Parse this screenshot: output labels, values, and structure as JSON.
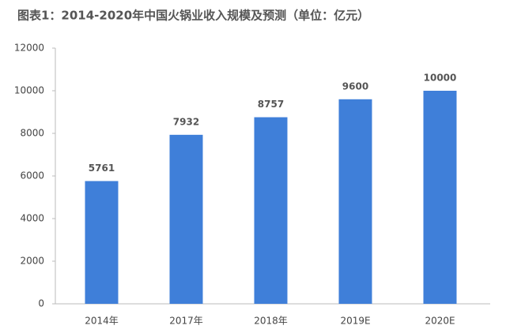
{
  "chart_data": {
    "type": "bar",
    "title": "图表1：2014-2020年中国火锅业收入规模及预测（单位：亿元）",
    "categories": [
      "2014年",
      "2017年",
      "2018年",
      "2019E",
      "2020E"
    ],
    "values": [
      5761,
      7932,
      8757,
      9600,
      10000
    ],
    "color": "#3f7fd9",
    "ylim": [
      0,
      12000
    ],
    "yticks": [
      0,
      2000,
      4000,
      6000,
      8000,
      10000,
      12000
    ],
    "grid": false
  }
}
